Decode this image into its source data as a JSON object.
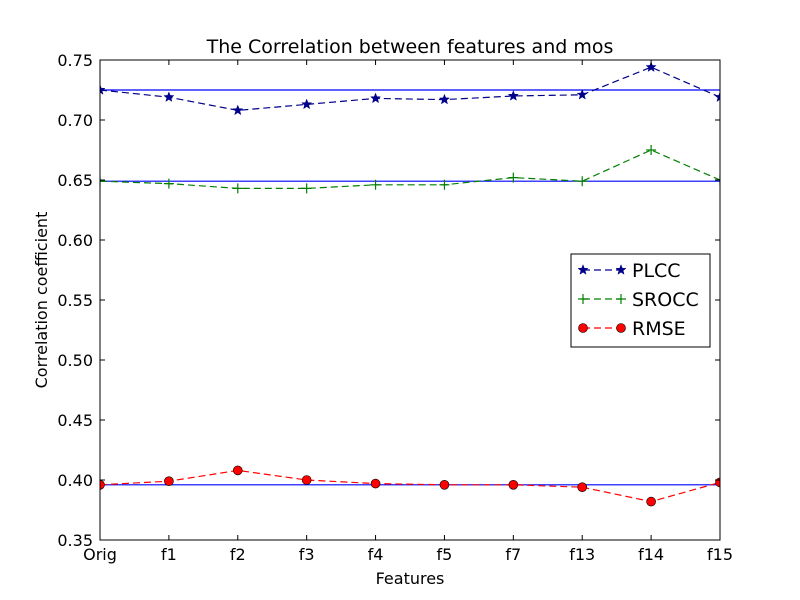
{
  "chart_data": {
    "type": "line",
    "title": "The Correlation between features and mos",
    "xlabel": "Features",
    "ylabel": "Correlation coefficient",
    "categories": [
      "Orig",
      "f1",
      "f2",
      "f3",
      "f4",
      "f5",
      "f7",
      "f13",
      "f14",
      "f15"
    ],
    "ylim": [
      0.35,
      0.75
    ],
    "yticks": [
      "0.35",
      "0.40",
      "0.45",
      "0.50",
      "0.55",
      "0.60",
      "0.65",
      "0.70",
      "0.75"
    ],
    "grid": false,
    "legend_position": "center-right",
    "series": [
      {
        "name": "PLCC",
        "color": "#00008b",
        "marker": "star",
        "linestyle": "dashed",
        "values": [
          0.725,
          0.719,
          0.708,
          0.713,
          0.718,
          0.717,
          0.72,
          0.721,
          0.744,
          0.719
        ]
      },
      {
        "name": "SROCC",
        "color": "#008000",
        "marker": "plus",
        "linestyle": "dashed",
        "values": [
          0.649,
          0.647,
          0.643,
          0.643,
          0.646,
          0.646,
          0.652,
          0.649,
          0.675,
          0.65
        ]
      },
      {
        "name": "RMSE",
        "color": "#ff0000",
        "marker": "circle",
        "linestyle": "dashed",
        "values": [
          0.396,
          0.399,
          0.408,
          0.4,
          0.397,
          0.396,
          0.396,
          0.394,
          0.382,
          0.398
        ]
      }
    ],
    "reference_lines": [
      {
        "value": 0.725,
        "color": "#0000ff"
      },
      {
        "value": 0.649,
        "color": "#0000ff"
      },
      {
        "value": 0.396,
        "color": "#0000ff"
      }
    ]
  }
}
